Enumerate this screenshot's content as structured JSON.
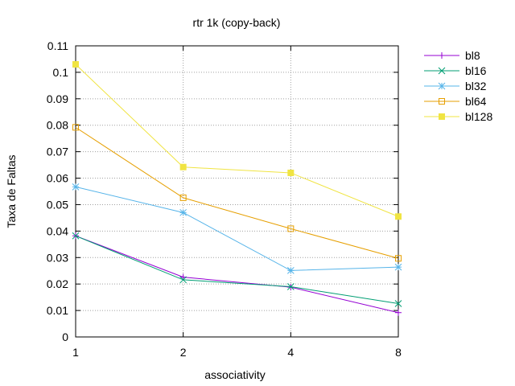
{
  "chart_data": {
    "type": "line",
    "title": "rtr 1k (copy-back)",
    "xlabel": "associativity",
    "ylabel": "Taxa de Faltas",
    "categories": [
      "1",
      "2",
      "4",
      "8"
    ],
    "yticks": [
      "0",
      "0.01",
      "0.02",
      "0.03",
      "0.04",
      "0.05",
      "0.06",
      "0.07",
      "0.08",
      "0.09",
      "0.1",
      "0.11"
    ],
    "ylim": [
      0,
      0.11
    ],
    "grid": true,
    "legend": "right",
    "series": [
      {
        "name": "bl8",
        "color": "#9400d3",
        "marker": "plus",
        "values": [
          0.0382,
          0.0226,
          0.0188,
          0.0092
        ]
      },
      {
        "name": "bl16",
        "color": "#009e73",
        "marker": "cross",
        "values": [
          0.0382,
          0.0216,
          0.019,
          0.0126
        ]
      },
      {
        "name": "bl32",
        "color": "#56b4e9",
        "marker": "star",
        "values": [
          0.0567,
          0.047,
          0.0251,
          0.0264
        ]
      },
      {
        "name": "bl64",
        "color": "#e69f00",
        "marker": "square",
        "values": [
          0.0792,
          0.0526,
          0.0409,
          0.0297
        ]
      },
      {
        "name": "bl128",
        "color": "#f0e442",
        "marker": "filled-square",
        "values": [
          0.103,
          0.0642,
          0.062,
          0.0455
        ]
      }
    ]
  }
}
